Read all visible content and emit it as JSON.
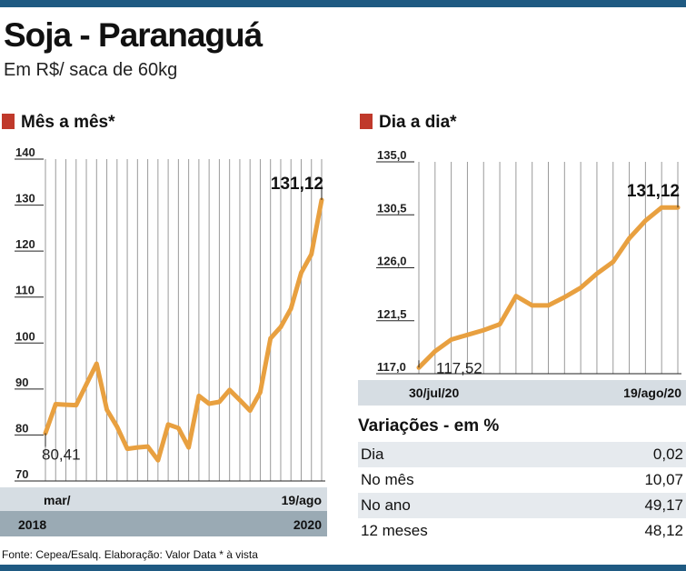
{
  "header": {
    "title": "Soja - Paranaguá",
    "subtitle": "Em R$/ saca de 60kg"
  },
  "sections": {
    "monthly": "Mês a mês*",
    "daily": "Dia a dia*"
  },
  "colors": {
    "line": "#e8a040",
    "marker": "#c0392b",
    "band_light": "#d6dde3",
    "band_dark": "#9aaab4",
    "bar": "#1f5a82"
  },
  "chart_data": [
    {
      "type": "line",
      "title": "Mês a mês*",
      "ylim": [
        70,
        140
      ],
      "yticks": [
        "70",
        "80",
        "90",
        "100",
        "110",
        "120",
        "130",
        "140"
      ],
      "values": [
        80.41,
        86.7,
        86.6,
        86.5,
        91.0,
        95.5,
        85.5,
        81.8,
        77.0,
        77.3,
        77.5,
        74.5,
        82.3,
        81.5,
        77.3,
        88.5,
        86.8,
        87.2,
        89.8,
        87.6,
        85.3,
        89.3,
        101.0,
        103.5,
        107.5,
        115.3,
        119.3,
        131.12
      ],
      "x_labels": {
        "start_month": "mar/",
        "start_year": "2018",
        "end_month": "19/ago",
        "end_year": "2020"
      },
      "start_label": "80,41",
      "end_label": "131,12",
      "grid": "vertical"
    },
    {
      "type": "line",
      "title": "Dia a dia*",
      "ylim": [
        117.0,
        135.0
      ],
      "yticks": [
        "117,0",
        "121,5",
        "126,0",
        "130,5",
        "135,0"
      ],
      "values": [
        117.52,
        118.9,
        119.9,
        120.3,
        120.7,
        121.2,
        123.6,
        122.8,
        122.8,
        123.5,
        124.3,
        125.5,
        126.5,
        128.5,
        130.0,
        131.12,
        131.12
      ],
      "x_labels": {
        "start": "30/jul/20",
        "end": "19/ago/20"
      },
      "start_label": "117,52",
      "end_label": "131,12",
      "grid": "vertical"
    }
  ],
  "variations": {
    "title": "Variações - em %",
    "rows": [
      {
        "label": "Dia",
        "value": "0,02"
      },
      {
        "label": "No mês",
        "value": "10,07"
      },
      {
        "label": "No ano",
        "value": "49,17"
      },
      {
        "label": "12 meses",
        "value": "48,12"
      }
    ]
  },
  "footer": {
    "source": "Fonte: Cepea/Esalq. Elaboração: Valor Data * à vista"
  }
}
